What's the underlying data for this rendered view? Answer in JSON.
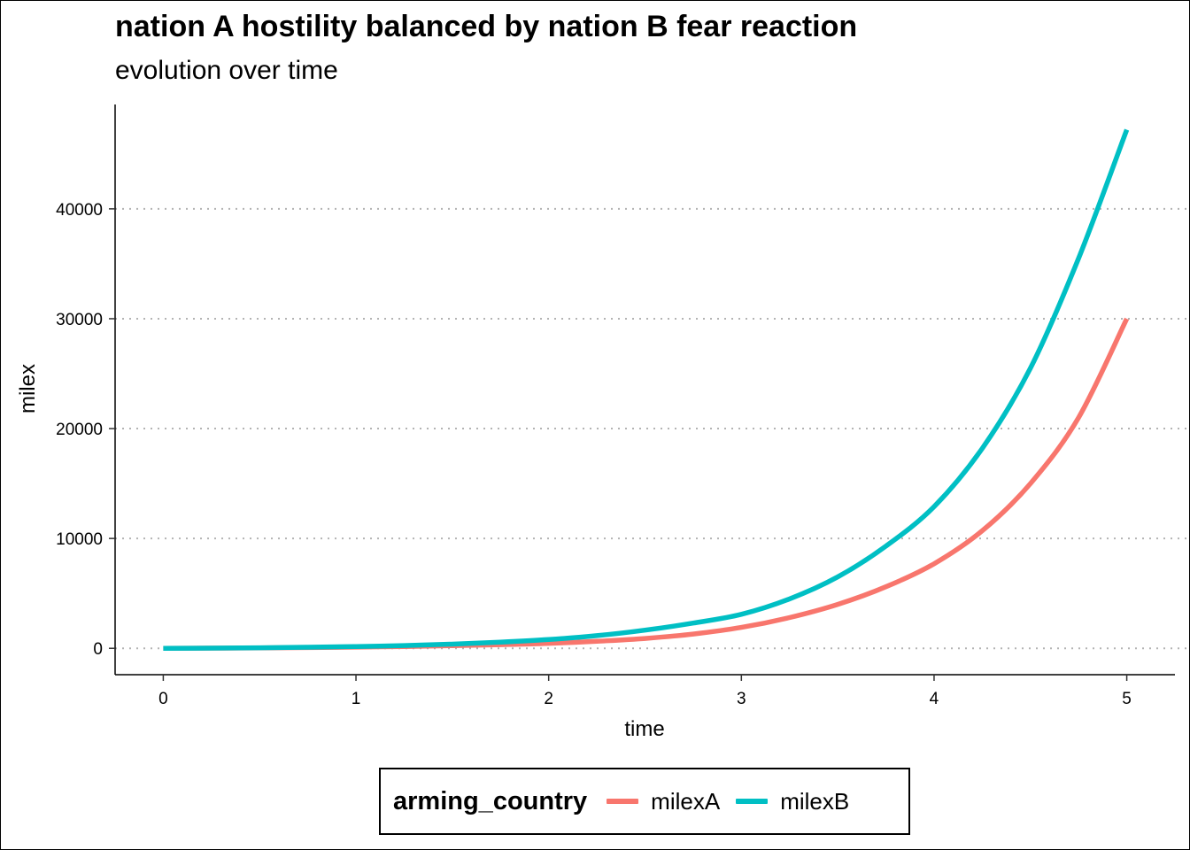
{
  "chart_data": {
    "type": "line",
    "title": "nation A hostility balanced by nation B fear reaction",
    "subtitle": "evolution over time",
    "xlabel": "time",
    "ylabel": "milex",
    "xlim": [
      -0.25,
      5.25
    ],
    "ylim": [
      -2400,
      49500
    ],
    "x_ticks": [
      0,
      1,
      2,
      3,
      4,
      5
    ],
    "y_ticks": [
      0,
      10000,
      20000,
      30000,
      40000
    ],
    "grid": "horizontal dotted",
    "legend": {
      "title": "arming_country",
      "position": "bottom"
    },
    "x": [
      0,
      0.25,
      0.5,
      0.75,
      1,
      1.25,
      1.5,
      1.75,
      2,
      2.25,
      2.5,
      2.75,
      3,
      3.25,
      3.5,
      3.75,
      4,
      4.25,
      4.5,
      4.75,
      5
    ],
    "series": [
      {
        "name": "milexA",
        "color": "#F8766D",
        "values": [
          0,
          15,
          35,
          70,
          110,
          165,
          240,
          330,
          450,
          640,
          900,
          1300,
          1900,
          2800,
          4000,
          5600,
          7700,
          10700,
          15000,
          21000,
          30000
        ]
      },
      {
        "name": "milexB",
        "color": "#00BFC4",
        "values": [
          0,
          20,
          50,
          95,
          160,
          250,
          380,
          560,
          800,
          1150,
          1650,
          2300,
          3100,
          4500,
          6500,
          9300,
          12900,
          18200,
          25500,
          35500,
          47200
        ]
      }
    ]
  }
}
